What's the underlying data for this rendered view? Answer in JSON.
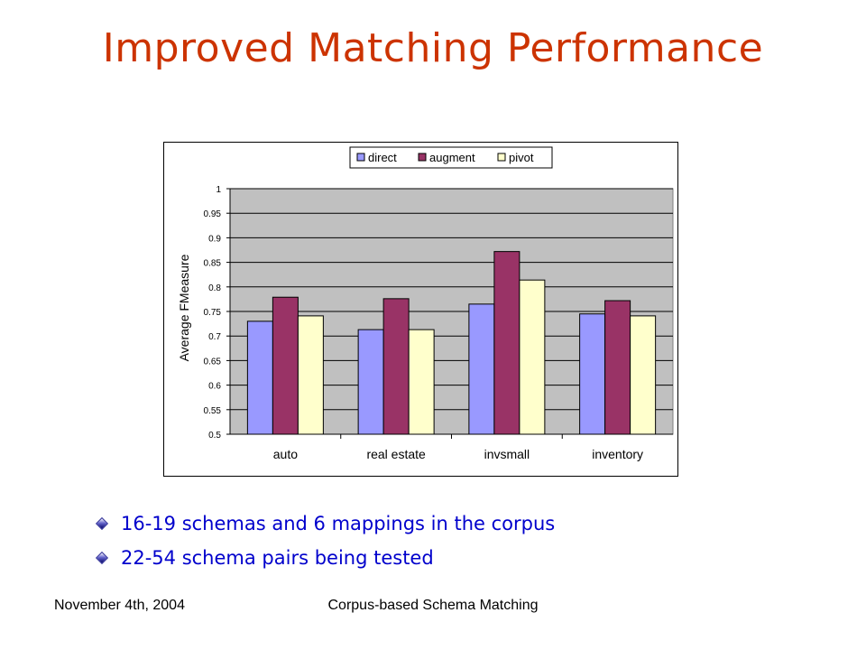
{
  "slide": {
    "title": "Improved Matching Performance",
    "bullets": [
      "16-19 schemas and 6 mappings in the corpus",
      "22-54 schema pairs being tested"
    ],
    "footer_date": "November 4th, 2004",
    "footer_title": "Corpus-based Schema Matching"
  },
  "colors": {
    "title": "#cc3300",
    "bullets": "#0000cc",
    "plot_area": "#c0c0c0"
  },
  "chart_data": {
    "type": "bar",
    "title": "",
    "xlabel": "",
    "ylabel": "Average FMeasure",
    "categories": [
      "auto",
      "real estate",
      "invsmall",
      "inventory"
    ],
    "series": [
      {
        "name": "direct",
        "color": "#9999ff",
        "values": [
          0.73,
          0.713,
          0.765,
          0.745
        ]
      },
      {
        "name": "augment",
        "color": "#993366",
        "values": [
          0.779,
          0.776,
          0.872,
          0.772
        ]
      },
      {
        "name": "pivot",
        "color": "#ffffcc",
        "values": [
          0.741,
          0.713,
          0.814,
          0.741
        ]
      }
    ],
    "ylim": [
      0.5,
      1
    ],
    "yticks": [
      "0.5",
      "0.55",
      "0.6",
      "0.65",
      "0.7",
      "0.75",
      "0.8",
      "0.85",
      "0.9",
      "0.95",
      "1"
    ],
    "grid": true,
    "legend_position": "top-center"
  }
}
